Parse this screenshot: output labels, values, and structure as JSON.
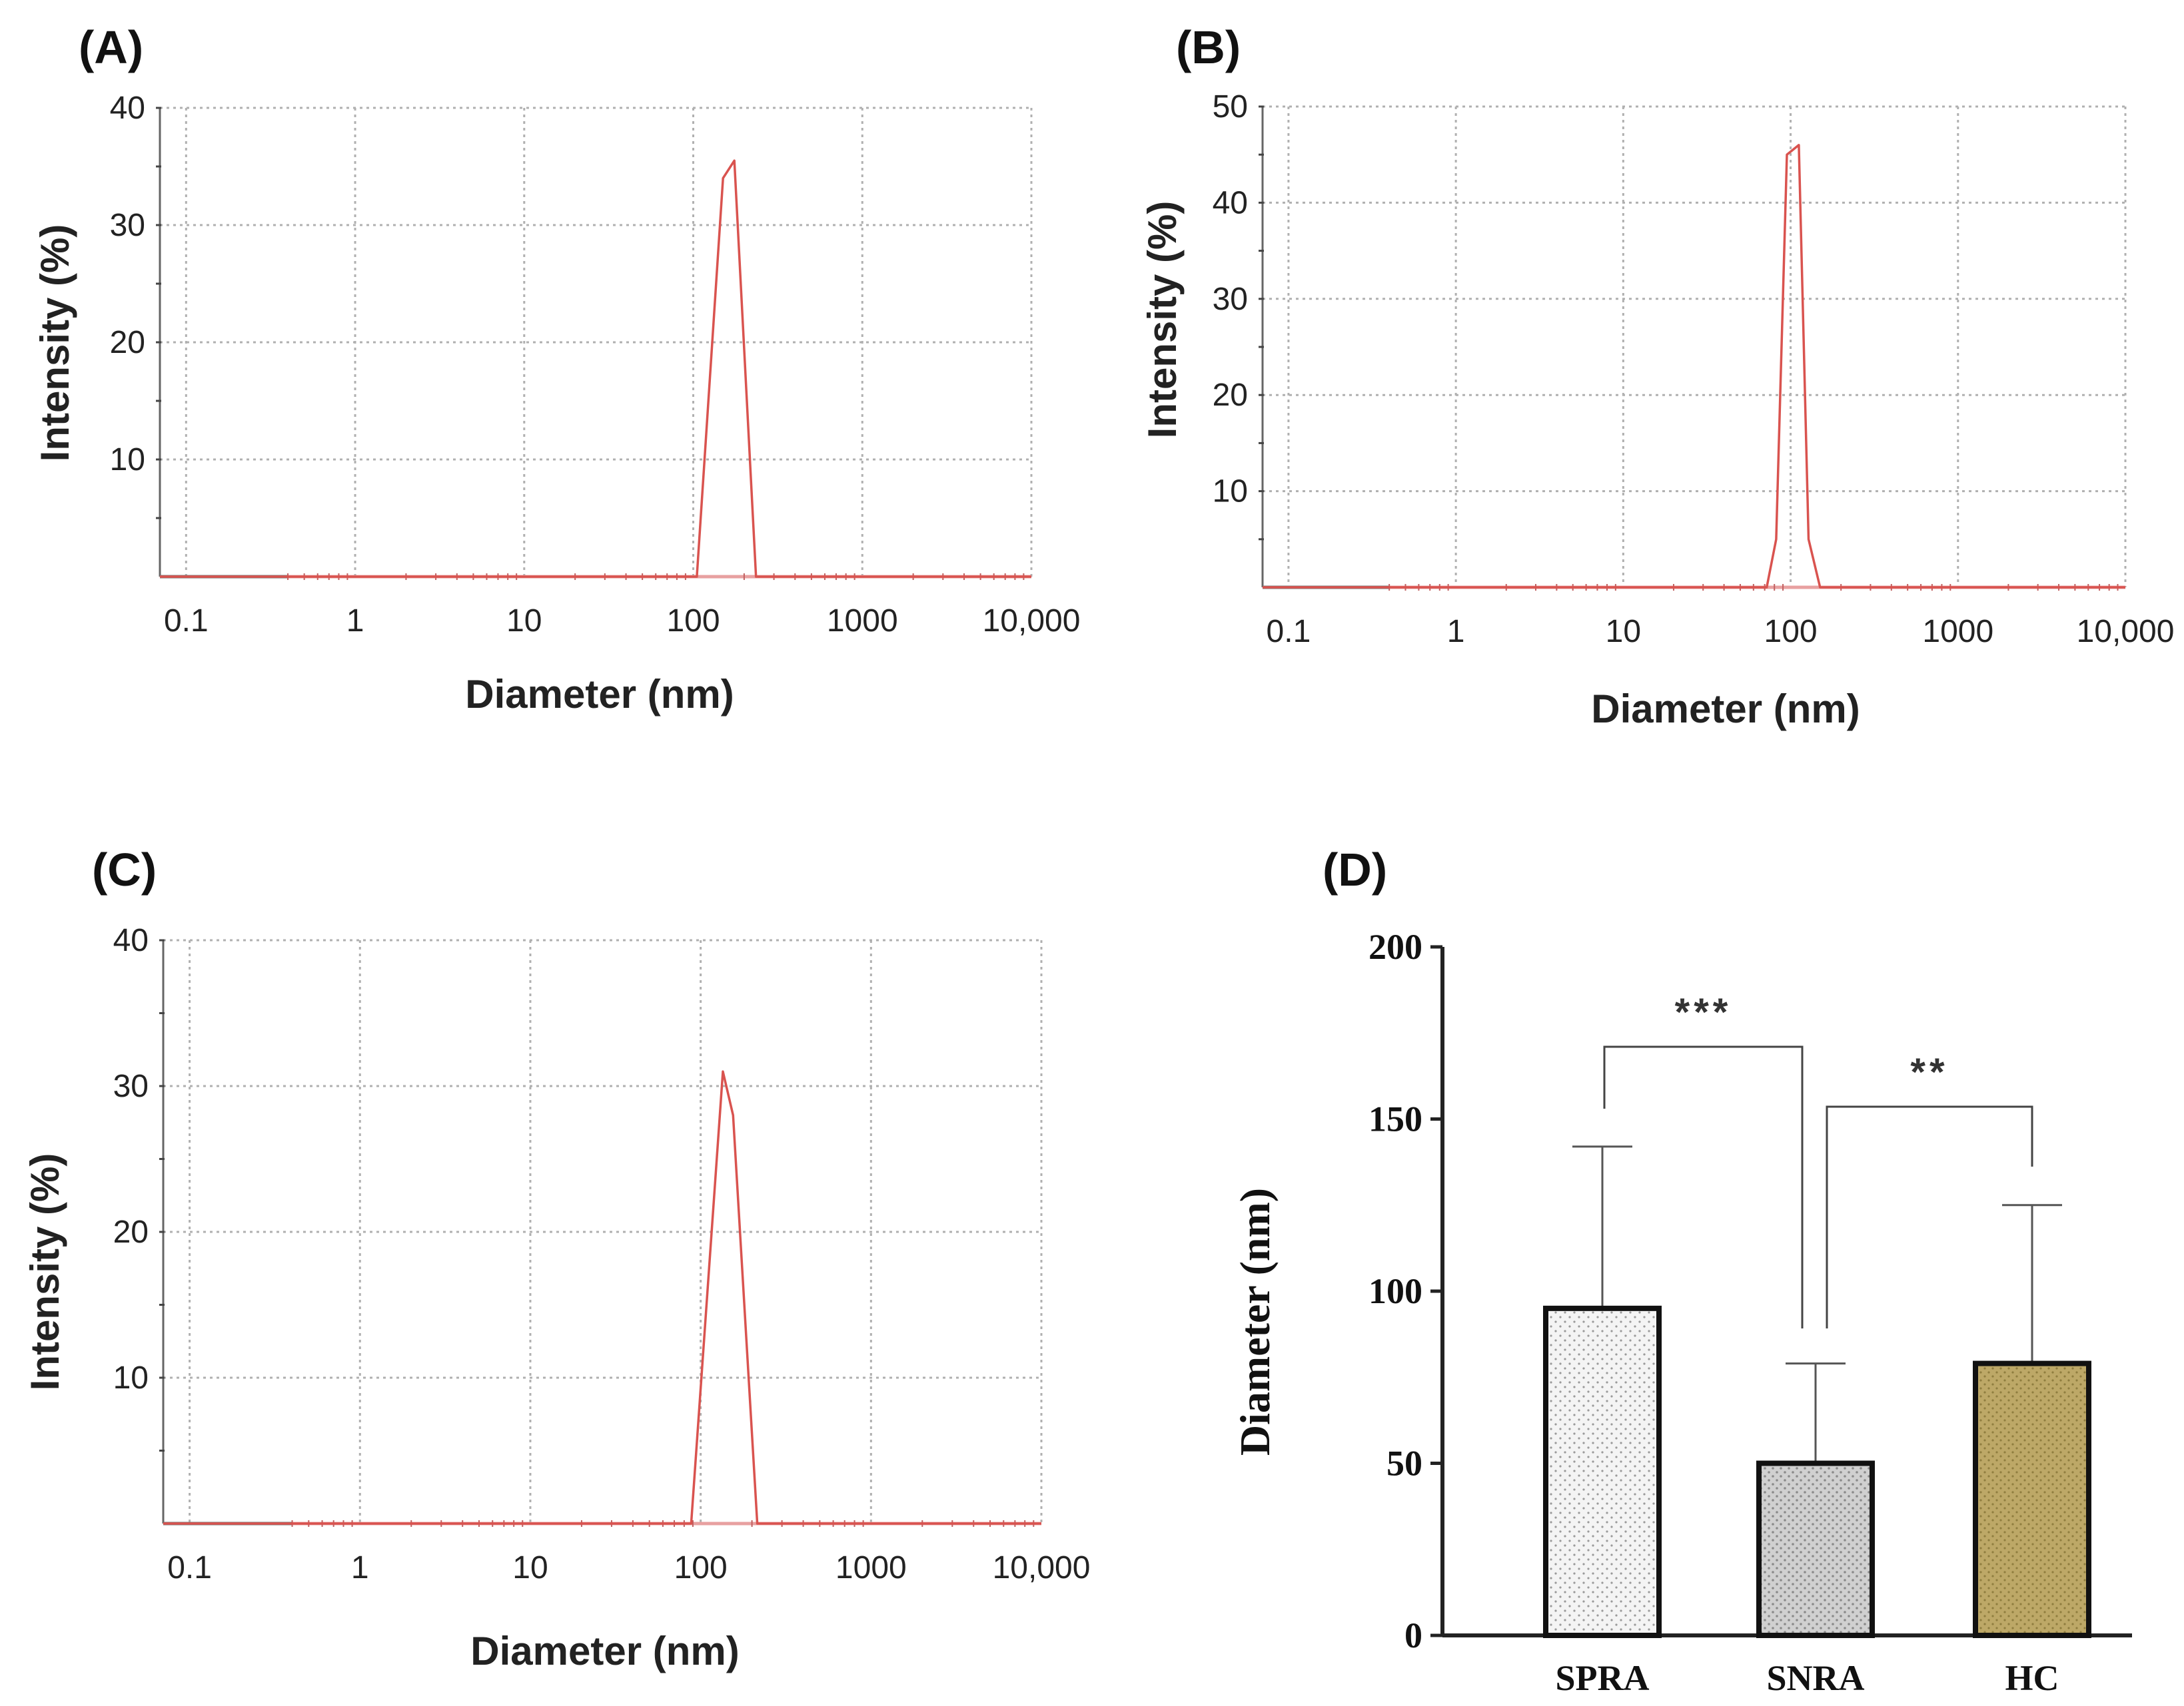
{
  "colors": {
    "curve": "#d9534f",
    "baseline_pink": "#e8a0a0",
    "grid": "#b0b0b0",
    "axis": "#222222",
    "bar_spra": "#f2f2f2",
    "bar_snra": "#cfcfcf",
    "bar_hc": "#bda867"
  },
  "chart_data": [
    {
      "id": "A",
      "type": "line",
      "panel_label": "(A)",
      "xlabel": "Diameter (nm)",
      "ylabel": "Intensity (%)",
      "xscale": "log",
      "xlim": [
        0.07,
        10000
      ],
      "ylim": [
        0,
        40
      ],
      "xticks": [
        {
          "v": 0.1,
          "label": "0.1"
        },
        {
          "v": 1,
          "label": "1"
        },
        {
          "v": 10,
          "label": "10"
        },
        {
          "v": 100,
          "label": "100"
        },
        {
          "v": 1000,
          "label": "1000"
        },
        {
          "v": 10000,
          "label": "10,000"
        }
      ],
      "yticks": [
        {
          "v": 10,
          "label": "10"
        },
        {
          "v": 20,
          "label": "20"
        },
        {
          "v": 30,
          "label": "30"
        },
        {
          "v": 40,
          "label": "40"
        }
      ],
      "series": [
        {
          "name": "Intensity",
          "x": [
            0.07,
            105,
            150,
            175,
            235,
            10000
          ],
          "y": [
            0,
            0,
            34,
            35.5,
            0,
            0
          ]
        }
      ]
    },
    {
      "id": "B",
      "type": "line",
      "panel_label": "(B)",
      "xlabel": "Diameter (nm)",
      "ylabel": "Intensity (%)",
      "xscale": "log",
      "xlim": [
        0.07,
        10000
      ],
      "ylim": [
        0,
        50
      ],
      "xticks": [
        {
          "v": 0.1,
          "label": "0.1"
        },
        {
          "v": 1,
          "label": "1"
        },
        {
          "v": 10,
          "label": "10"
        },
        {
          "v": 100,
          "label": "100"
        },
        {
          "v": 1000,
          "label": "1000"
        },
        {
          "v": 10000,
          "label": "10,000"
        }
      ],
      "yticks": [
        {
          "v": 10,
          "label": "10"
        },
        {
          "v": 20,
          "label": "20"
        },
        {
          "v": 30,
          "label": "30"
        },
        {
          "v": 40,
          "label": "40"
        },
        {
          "v": 50,
          "label": "50"
        }
      ],
      "series": [
        {
          "name": "Intensity",
          "x": [
            0.07,
            72,
            82,
            95,
            112,
            128,
            150,
            10000
          ],
          "y": [
            0,
            0,
            5,
            45,
            46,
            5,
            0,
            0
          ]
        }
      ]
    },
    {
      "id": "C",
      "type": "line",
      "panel_label": "(C)",
      "xlabel": "Diameter (nm)",
      "ylabel": "Intensity (%)",
      "xscale": "log",
      "xlim": [
        0.07,
        10000
      ],
      "ylim": [
        0,
        40
      ],
      "xticks": [
        {
          "v": 0.1,
          "label": "0.1"
        },
        {
          "v": 1,
          "label": "1"
        },
        {
          "v": 10,
          "label": "10"
        },
        {
          "v": 100,
          "label": "100"
        },
        {
          "v": 1000,
          "label": "1000"
        },
        {
          "v": 10000,
          "label": "10,000"
        }
      ],
      "yticks": [
        {
          "v": 10,
          "label": "10"
        },
        {
          "v": 20,
          "label": "20"
        },
        {
          "v": 30,
          "label": "30"
        },
        {
          "v": 40,
          "label": "40"
        }
      ],
      "series": [
        {
          "name": "Intensity",
          "x": [
            0.07,
            88,
            135,
            155,
            215,
            10000
          ],
          "y": [
            0,
            0,
            31,
            28,
            0,
            0
          ]
        }
      ]
    },
    {
      "id": "D",
      "type": "bar",
      "panel_label": "(D)",
      "xlabel": "",
      "ylabel": "Diameter (nm)",
      "ylim": [
        0,
        200
      ],
      "yticks": [
        {
          "v": 0,
          "label": "0"
        },
        {
          "v": 50,
          "label": "50"
        },
        {
          "v": 100,
          "label": "100"
        },
        {
          "v": 150,
          "label": "150"
        },
        {
          "v": 200,
          "label": "200"
        }
      ],
      "categories": [
        "SPRA",
        "SNRA",
        "HC"
      ],
      "values": [
        95,
        50,
        79
      ],
      "errors": [
        47,
        29,
        46
      ],
      "significance": [
        {
          "from": 0,
          "to": 1,
          "label": "***"
        },
        {
          "from": 1,
          "to": 2,
          "label": "**"
        }
      ]
    }
  ]
}
